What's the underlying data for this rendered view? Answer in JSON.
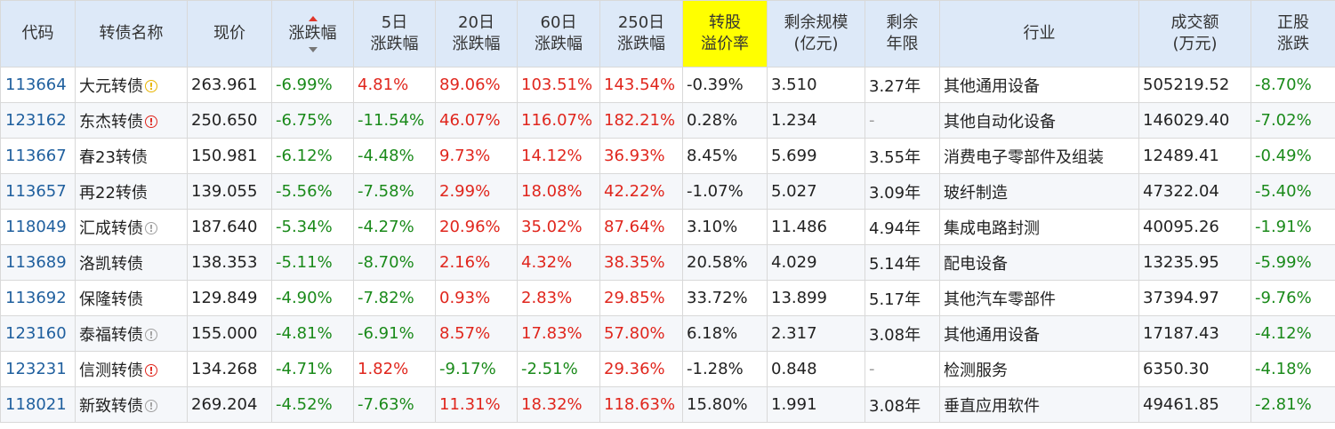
{
  "columns": [
    {
      "label": "代码",
      "sub": ""
    },
    {
      "label": "转债名称",
      "sub": ""
    },
    {
      "label": "现价",
      "sub": ""
    },
    {
      "label": "涨跌幅",
      "sub": ""
    },
    {
      "label": "5日",
      "sub": "涨跌幅"
    },
    {
      "label": "20日",
      "sub": "涨跌幅"
    },
    {
      "label": "60日",
      "sub": "涨跌幅"
    },
    {
      "label": "250日",
      "sub": "涨跌幅"
    },
    {
      "label": "转股",
      "sub": "溢价率"
    },
    {
      "label": "剩余规模",
      "sub": "(亿元)"
    },
    {
      "label": "剩余",
      "sub": "年限"
    },
    {
      "label": "行业",
      "sub": ""
    },
    {
      "label": "成交额",
      "sub": "(万元)"
    },
    {
      "label": "正股",
      "sub": "涨跌"
    }
  ],
  "colors": {
    "header_bg": "#dde9f8",
    "highlight": "#ffff00",
    "up": "#e0261d",
    "down": "#1a8a1a",
    "code": "#1f5f9e"
  },
  "rows": [
    {
      "code": "113664",
      "name": "大元转债",
      "badge": "warn",
      "badge_glyph": "!",
      "price": "263.961",
      "chg": "-6.99%",
      "d5": "4.81%",
      "d20": "89.06%",
      "d60": "103.51%",
      "d250": "143.54%",
      "premium": "-0.39%",
      "scale": "3.510",
      "years": "3.27年",
      "industry": "其他通用设备",
      "turnover": "505219.52",
      "stock_chg": "-8.70%"
    },
    {
      "code": "123162",
      "name": "东杰转债",
      "badge": "alert",
      "badge_glyph": "!",
      "price": "250.650",
      "chg": "-6.75%",
      "d5": "-11.54%",
      "d20": "46.07%",
      "d60": "116.07%",
      "d250": "182.21%",
      "premium": "0.28%",
      "scale": "1.234",
      "years": "-",
      "industry": "其他自动化设备",
      "turnover": "146029.40",
      "stock_chg": "-7.02%"
    },
    {
      "code": "113667",
      "name": "春23转债",
      "badge": "",
      "badge_glyph": "",
      "price": "150.981",
      "chg": "-6.12%",
      "d5": "-4.48%",
      "d20": "9.73%",
      "d60": "14.12%",
      "d250": "36.93%",
      "premium": "8.45%",
      "scale": "5.699",
      "years": "3.55年",
      "industry": "消费电子零部件及组装",
      "turnover": "12489.41",
      "stock_chg": "-0.49%"
    },
    {
      "code": "113657",
      "name": "再22转债",
      "badge": "",
      "badge_glyph": "",
      "price": "139.055",
      "chg": "-5.56%",
      "d5": "-7.58%",
      "d20": "2.99%",
      "d60": "18.08%",
      "d250": "42.22%",
      "premium": "-1.07%",
      "scale": "5.027",
      "years": "3.09年",
      "industry": "玻纤制造",
      "turnover": "47322.04",
      "stock_chg": "-5.40%"
    },
    {
      "code": "118049",
      "name": "汇成转债",
      "badge": "info",
      "badge_glyph": "!",
      "price": "187.640",
      "chg": "-5.34%",
      "d5": "-4.27%",
      "d20": "20.96%",
      "d60": "35.02%",
      "d250": "87.64%",
      "premium": "3.10%",
      "scale": "11.486",
      "years": "4.94年",
      "industry": "集成电路封测",
      "turnover": "40095.26",
      "stock_chg": "-1.91%"
    },
    {
      "code": "113689",
      "name": "洛凯转债",
      "badge": "",
      "badge_glyph": "",
      "price": "138.353",
      "chg": "-5.11%",
      "d5": "-8.70%",
      "d20": "2.16%",
      "d60": "4.32%",
      "d250": "38.35%",
      "premium": "20.58%",
      "scale": "4.029",
      "years": "5.14年",
      "industry": "配电设备",
      "turnover": "13235.95",
      "stock_chg": "-5.99%"
    },
    {
      "code": "113692",
      "name": "保隆转债",
      "badge": "",
      "badge_glyph": "",
      "price": "129.849",
      "chg": "-4.90%",
      "d5": "-7.82%",
      "d20": "0.93%",
      "d60": "2.83%",
      "d250": "29.85%",
      "premium": "33.72%",
      "scale": "13.899",
      "years": "5.17年",
      "industry": "其他汽车零部件",
      "turnover": "37394.97",
      "stock_chg": "-9.76%"
    },
    {
      "code": "123160",
      "name": "泰福转债",
      "badge": "info",
      "badge_glyph": "!",
      "price": "155.000",
      "chg": "-4.81%",
      "d5": "-6.91%",
      "d20": "8.57%",
      "d60": "17.83%",
      "d250": "57.80%",
      "premium": "6.18%",
      "scale": "2.317",
      "years": "3.08年",
      "industry": "其他通用设备",
      "turnover": "17187.43",
      "stock_chg": "-4.12%"
    },
    {
      "code": "123231",
      "name": "信测转债",
      "badge": "alert",
      "badge_glyph": "!",
      "price": "134.268",
      "chg": "-4.71%",
      "d5": "1.82%",
      "d20": "-9.17%",
      "d60": "-2.51%",
      "d250": "29.36%",
      "premium": "-1.28%",
      "scale": "0.848",
      "years": "-",
      "industry": "检测服务",
      "turnover": "6350.30",
      "stock_chg": "-4.18%"
    },
    {
      "code": "118021",
      "name": "新致转债",
      "badge": "info",
      "badge_glyph": "!",
      "price": "269.204",
      "chg": "-4.52%",
      "d5": "-7.63%",
      "d20": "11.31%",
      "d60": "18.32%",
      "d250": "118.63%",
      "premium": "15.80%",
      "scale": "1.991",
      "years": "3.08年",
      "industry": "垂直应用软件",
      "turnover": "49461.85",
      "stock_chg": "-2.81%"
    }
  ]
}
